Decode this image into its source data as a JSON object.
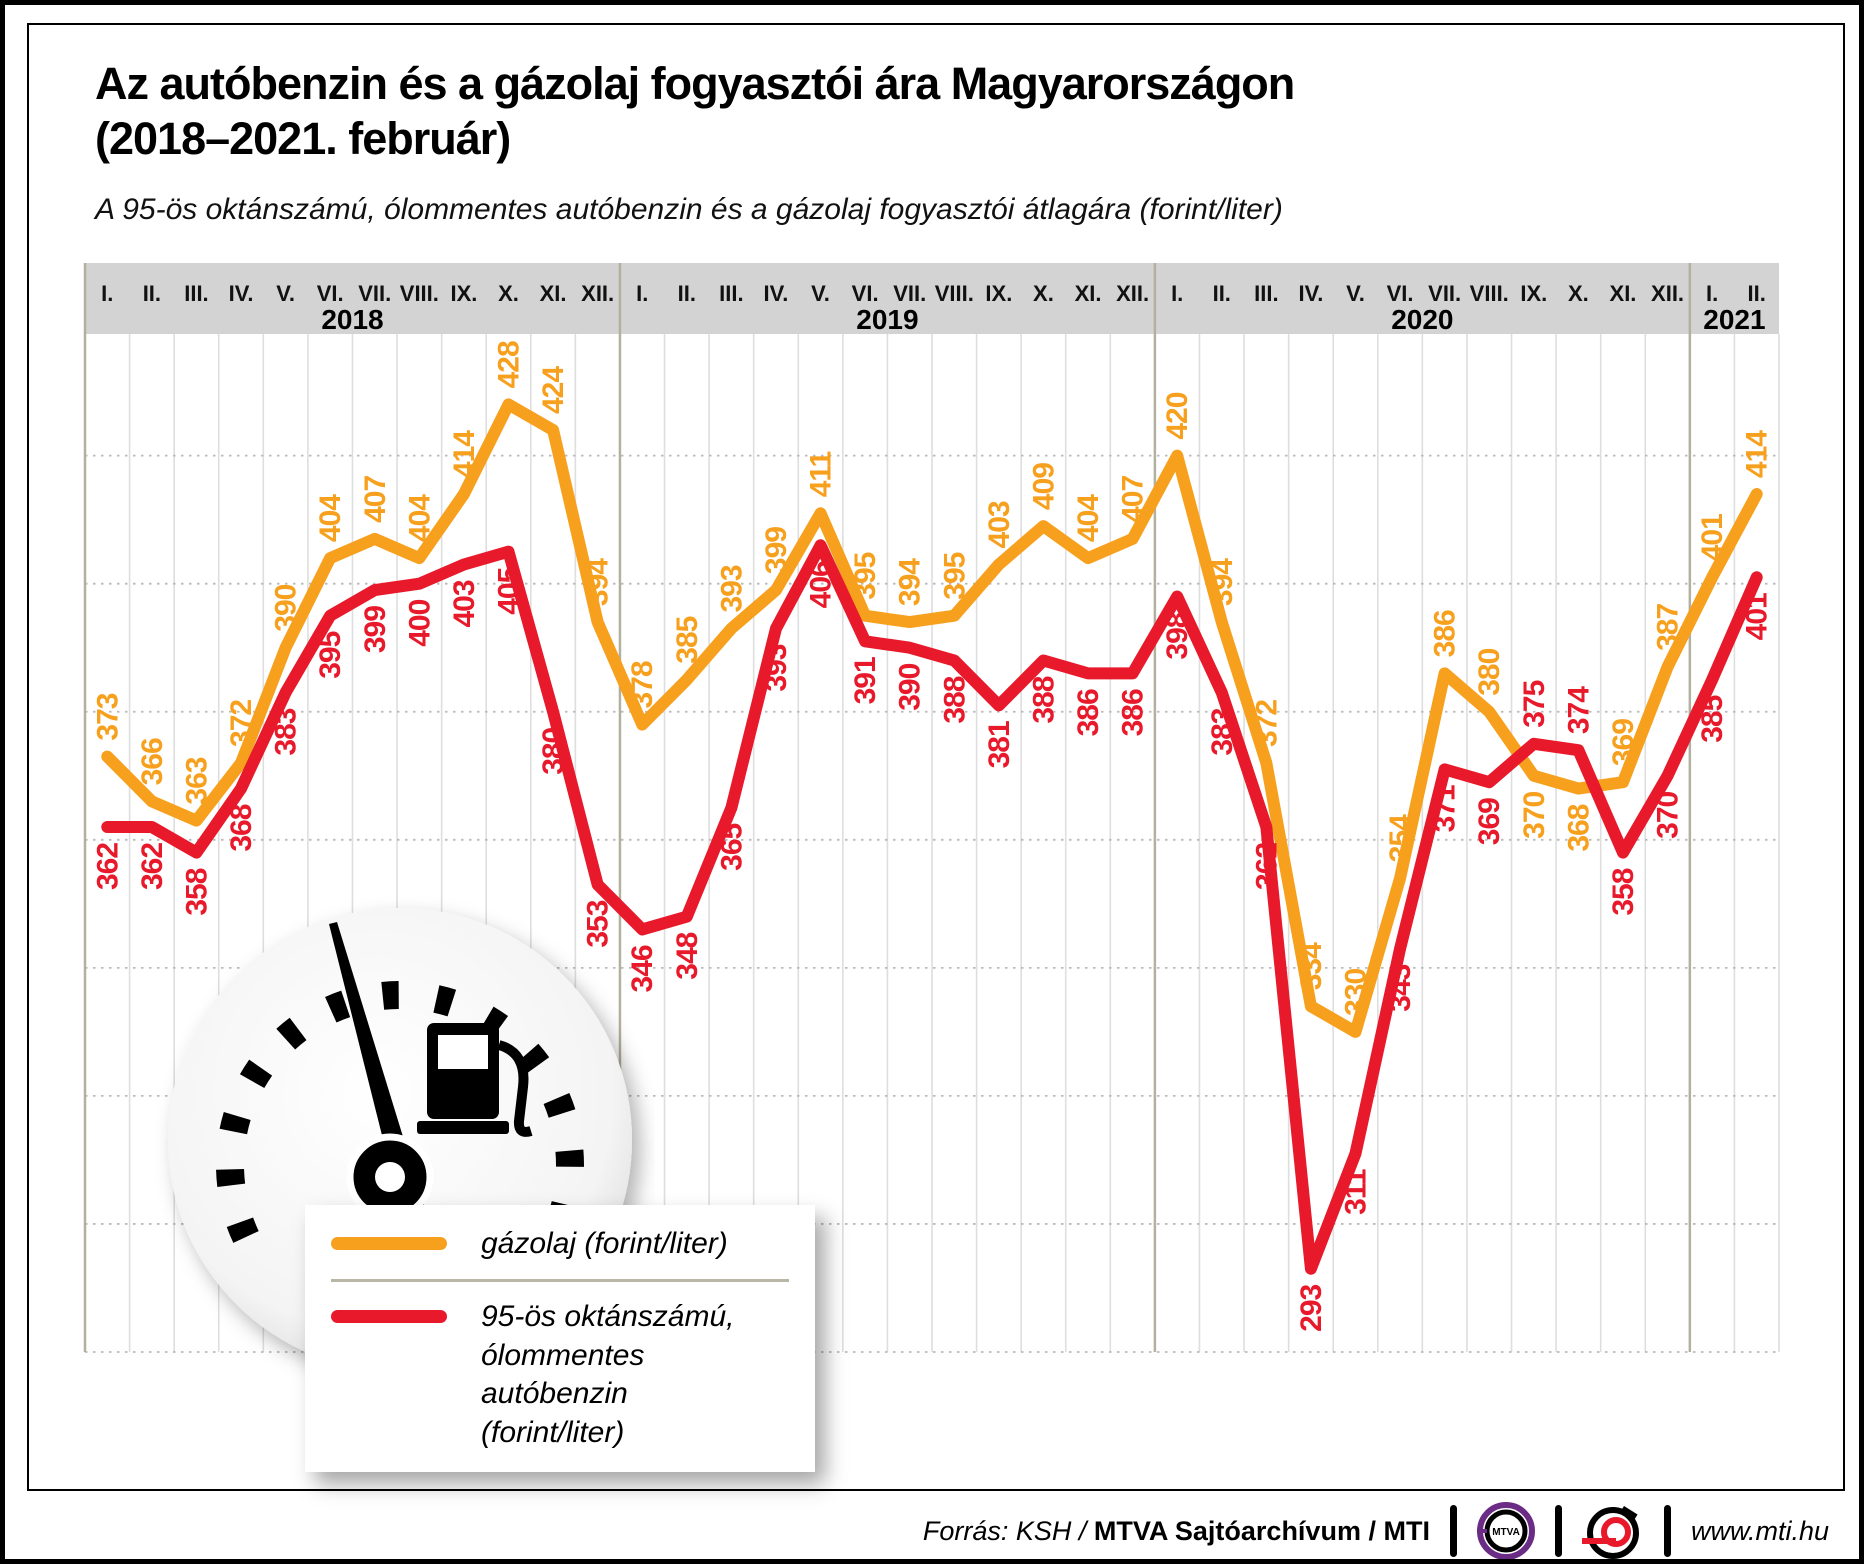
{
  "title": {
    "line1": "Az autóbenzin és a gázolaj fogyasztói ára Magyarországon",
    "line2": "(2018–2021. február)"
  },
  "subtitle": "A 95-ös oktánszámú, ólommentes autóbenzin és a gázolaj fogyasztói átlagára (forint/liter)",
  "chart_data": {
    "type": "line",
    "title": "Az autóbenzin és a gázolaj fogyasztói ára Magyarországon (2018–2021. február)",
    "subtitle": "A 95-ös oktánszámú, ólommentes autóbenzin és a gázolaj fogyasztói átlagára (forint/liter)",
    "unit": "forint/liter",
    "x_groups": [
      {
        "year": "2018",
        "months": [
          "I.",
          "II.",
          "III.",
          "IV.",
          "V.",
          "VI.",
          "VII.",
          "VIII.",
          "IX.",
          "X.",
          "XI.",
          "XII."
        ]
      },
      {
        "year": "2019",
        "months": [
          "I.",
          "II.",
          "III.",
          "IV.",
          "V.",
          "VI.",
          "VII.",
          "VIII.",
          "IX.",
          "X.",
          "XI.",
          "XII."
        ]
      },
      {
        "year": "2020",
        "months": [
          "I.",
          "II.",
          "III.",
          "IV.",
          "V.",
          "VI.",
          "VII.",
          "VIII.",
          "IX.",
          "X.",
          "XI.",
          "XII."
        ]
      },
      {
        "year": "2021",
        "months": [
          "I.",
          "II."
        ]
      }
    ],
    "series": [
      {
        "name": "gázolaj (forint/liter)",
        "color": "#F7A01D",
        "values": [
          373,
          366,
          363,
          372,
          390,
          404,
          407,
          404,
          414,
          428,
          424,
          394,
          378,
          385,
          393,
          399,
          411,
          395,
          394,
          395,
          403,
          409,
          404,
          407,
          420,
          394,
          372,
          334,
          330,
          354,
          386,
          380,
          370,
          368,
          369,
          387,
          401,
          414
        ]
      },
      {
        "name": "95-ös oktánszámú, ólommentes autóbenzin (forint/liter)",
        "color": "#E8192B",
        "values": [
          362,
          362,
          358,
          368,
          383,
          395,
          399,
          400,
          403,
          405,
          380,
          353,
          346,
          348,
          365,
          393,
          406,
          391,
          390,
          388,
          381,
          388,
          386,
          386,
          398,
          383,
          362,
          293,
          311,
          343,
          371,
          369,
          375,
          374,
          358,
          370,
          385,
          401
        ]
      }
    ],
    "ylim": [
      280,
      439
    ],
    "gridlines_y": [
      280,
      300,
      320,
      340,
      360,
      380,
      400,
      420
    ],
    "y_axis_tick_labels_visible": false,
    "grid": "vertical solid per month, horizontal dotted",
    "legend_position": "overlay bottom-left",
    "point_labels": "every point, rotated 90°, colored per series"
  },
  "legend": {
    "items": [
      {
        "label": "gázolaj (forint/liter)"
      },
      {
        "line1": "95-ös oktánszámú,",
        "line2": "ólommentes autóbenzin",
        "line3": "(forint/liter)"
      }
    ]
  },
  "footer": {
    "source_italic": "Forrás: KSH / ",
    "source_bold": "MTVA Sajtóarchívum / MTI",
    "mtva_logo_text": "MTVA",
    "site": "www.mti.hu"
  },
  "colors": {
    "diesel_orange": "#F7A01D",
    "petrol_red": "#E8192B",
    "header_band": "#D3D3D3",
    "grid_vertical": "#DEDEDE",
    "grid_dotted": "#B9B9B9",
    "year_separator": "#B3B09F",
    "mtva_purple": "#6A2C84"
  }
}
